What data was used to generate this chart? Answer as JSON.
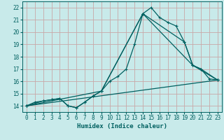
{
  "xlabel": "Humidex (Indice chaleur)",
  "background_color": "#c8eaea",
  "grid_color": "#c8a8a8",
  "line_color": "#006060",
  "xlim": [
    -0.5,
    23.5
  ],
  "ylim": [
    13.5,
    22.5
  ],
  "xticks": [
    0,
    1,
    2,
    3,
    4,
    5,
    6,
    7,
    8,
    9,
    10,
    11,
    12,
    13,
    14,
    15,
    16,
    17,
    18,
    19,
    20,
    21,
    22,
    23
  ],
  "yticks": [
    14,
    15,
    16,
    17,
    18,
    19,
    20,
    21,
    22
  ],
  "line1_x": [
    0,
    1,
    2,
    3,
    4,
    5,
    6,
    7,
    8,
    9,
    10,
    11,
    12,
    13,
    14,
    15,
    16,
    17,
    18,
    19,
    20,
    21,
    22,
    23
  ],
  "line1_y": [
    14.0,
    14.3,
    14.4,
    14.5,
    14.6,
    14.0,
    13.85,
    14.3,
    14.8,
    15.2,
    16.0,
    16.4,
    17.0,
    19.0,
    21.5,
    22.0,
    21.2,
    20.8,
    20.5,
    19.2,
    17.3,
    17.0,
    16.2,
    16.1
  ],
  "line2_x": [
    0,
    2,
    3,
    4,
    5,
    6,
    7,
    8,
    9,
    14,
    19,
    20,
    21,
    23
  ],
  "line2_y": [
    14.0,
    14.4,
    14.5,
    14.6,
    14.0,
    13.85,
    14.3,
    14.8,
    15.2,
    21.5,
    19.2,
    17.3,
    17.0,
    16.1
  ],
  "line3_x": [
    0,
    23
  ],
  "line3_y": [
    14.0,
    16.1
  ],
  "line4_x": [
    0,
    9,
    14,
    20,
    23
  ],
  "line4_y": [
    14.0,
    15.2,
    21.5,
    17.3,
    16.1
  ]
}
